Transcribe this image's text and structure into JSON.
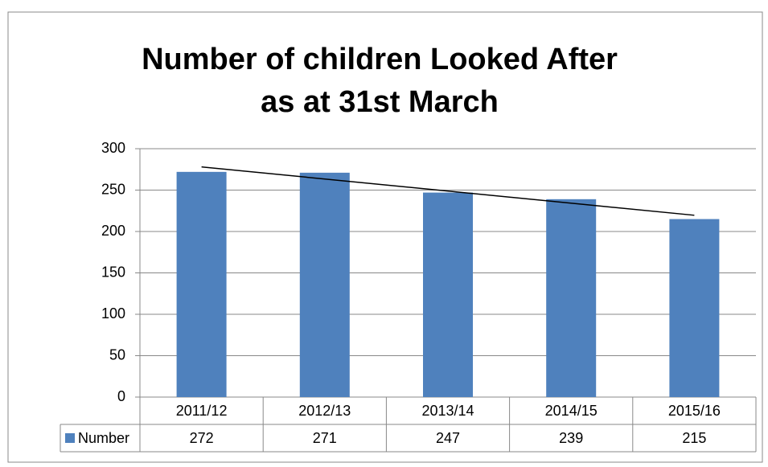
{
  "chart_data": {
    "type": "bar",
    "title": [
      "Number of children Looked After",
      "as at 31st March"
    ],
    "categories": [
      "2011/12",
      "2012/13",
      "2013/14",
      "2014/15",
      "2015/16"
    ],
    "series": [
      {
        "name": "Number",
        "color": "#4f81bd",
        "values": [
          272,
          271,
          247,
          239,
          215
        ]
      }
    ],
    "ylim": [
      0,
      300
    ],
    "yticks": [
      0,
      50,
      100,
      150,
      200,
      250,
      300
    ],
    "grid": true,
    "trendline": "linear",
    "data_table": true
  }
}
